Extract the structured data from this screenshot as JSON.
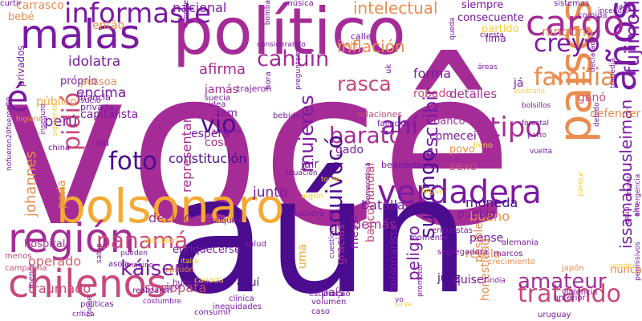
{
  "palette": {
    "deep_purple": "#4b0c8f",
    "purple": "#7a1aa3",
    "magenta": "#a52c97",
    "rose": "#c9487a",
    "pink": "#d8636a",
    "orange": "#ea8c4e",
    "amber": "#f5a935",
    "yellow": "#f7cd3a"
  },
  "words": [
    {
      "text": "você",
      "color": "#a52c97"
    },
    {
      "text": "aún",
      "color": "#4b0c8f"
    },
    {
      "text": "político",
      "color": "#a52c97"
    },
    {
      "text": "bolsonaro",
      "color": "#f5a935"
    },
    {
      "text": "región",
      "color": "#a52c97"
    },
    {
      "text": "chilenos",
      "color": "#c9487a"
    },
    {
      "text": "malas",
      "color": "#7a1aa3"
    },
    {
      "text": "países",
      "color": "#ea8c4e"
    },
    {
      "text": "verdadera",
      "color": "#7a1aa3"
    },
    {
      "text": "años",
      "color": "#7a1aa3"
    },
    {
      "text": "cargo",
      "color": "#a52c97"
    },
    {
      "text": "é",
      "color": "#7a1aa3"
    },
    {
      "text": "informaste",
      "color": "#7a1aa3"
    },
    {
      "text": "creyó",
      "color": "#7a1aa3"
    },
    {
      "text": "familia",
      "color": "#ea8c4e"
    },
    {
      "text": "fujimori",
      "color": "#7a1aa3"
    },
    {
      "text": "tipo",
      "color": "#a52c97"
    },
    {
      "text": "vio",
      "color": "#4b0c8f"
    },
    {
      "text": "ahí",
      "color": "#7a1aa3"
    },
    {
      "text": "foto",
      "color": "#4b0c8f"
    },
    {
      "text": "supongo",
      "color": "#4b0c8f"
    },
    {
      "text": "escribir",
      "color": "#7a1aa3"
    },
    {
      "text": "barato",
      "color": "#a52c97"
    },
    {
      "text": "rasca",
      "color": "#c9487a"
    },
    {
      "text": "cahuin",
      "color": "#a52c97"
    },
    {
      "text": "panamá",
      "color": "#c9487a"
    },
    {
      "text": "káiser",
      "color": "#7a1aa3"
    },
    {
      "text": "tratando",
      "color": "#c9487a"
    },
    {
      "text": "amateur",
      "color": "#a52c97"
    },
    {
      "text": "equivocó",
      "color": "#4b0c8f"
    },
    {
      "text": "pidió",
      "color": "#c9487a"
    },
    {
      "text": "mujeres",
      "color": "#7a1aa3"
    },
    {
      "text": "peligro",
      "color": "#7a1aa3"
    },
    {
      "text": "issamabousleiman",
      "color": "#7a1aa3"
    },
    {
      "text": "inflación",
      "color": "#ea8c4e"
    },
    {
      "text": "intelectual",
      "color": "#ea8c4e"
    },
    {
      "text": "nacional",
      "color": "#7a1aa3"
    },
    {
      "text": "ninguna",
      "color": "#ea8c4e"
    },
    {
      "text": "forma",
      "color": "#7a1aa3"
    },
    {
      "text": "robado",
      "color": "#c9487a"
    },
    {
      "text": "afirma",
      "color": "#a52c97"
    },
    {
      "text": "encima",
      "color": "#7a1aa3"
    },
    {
      "text": "idolatra",
      "color": "#7a1aa3"
    },
    {
      "text": "johannes",
      "color": "#ea8c4e"
    },
    {
      "text": "perú",
      "color": "#7a1aa3"
    },
    {
      "text": "constitución",
      "color": "#4b0c8f"
    },
    {
      "text": "batalla",
      "color": "#7a1aa3"
    },
    {
      "text": "moneda",
      "color": "#4b0c8f"
    },
    {
      "text": "bueno",
      "color": "#ea8c4e"
    },
    {
      "text": "demás",
      "color": "#a52c97"
    },
    {
      "text": "decirlo",
      "color": "#a52c97"
    },
    {
      "text": "junto",
      "color": "#7a1aa3"
    },
    {
      "text": "sociopata",
      "color": "#c9487a"
    },
    {
      "text": "traumado",
      "color": "#c9487a"
    },
    {
      "text": "operado",
      "color": "#d8636a"
    },
    {
      "text": "honestidad",
      "color": "#ea8c4e"
    },
    {
      "text": "bolsonarista",
      "color": "#7a1aa3"
    },
    {
      "text": "bancomundial",
      "color": "#c9487a"
    },
    {
      "text": "messi",
      "color": "#7a1aa3"
    },
    {
      "text": "gracias",
      "color": "#a52c97"
    },
    {
      "text": "posible",
      "color": "#ea8c4e"
    },
    {
      "text": "detalles",
      "color": "#a52c97"
    },
    {
      "text": "representante",
      "color": "#a52c97"
    },
    {
      "text": "costa",
      "color": "#a52c97"
    },
    {
      "text": "espera",
      "color": "#7a1aa3"
    },
    {
      "text": "jair",
      "color": "#7a1aa3"
    },
    {
      "text": "gado",
      "color": "#7a1aa3"
    },
    {
      "text": "jamás",
      "color": "#a52c97"
    },
    {
      "text": "tem",
      "color": "#7a1aa3"
    },
    {
      "text": "banco",
      "color": "#a52c97"
    },
    {
      "text": "comecei",
      "color": "#7a1aa3"
    },
    {
      "text": "povo",
      "color": "#ea8c4e"
    },
    {
      "text": "sexo",
      "color": "#c9487a"
    },
    {
      "text": "ganó",
      "color": "#c9487a"
    },
    {
      "text": "já",
      "color": "#7a1aa3"
    },
    {
      "text": "defender",
      "color": "#ea8c4e"
    },
    {
      "text": "pueblo",
      "color": "#7a1aa3"
    },
    {
      "text": "pense",
      "color": "#7a1aa3"
    },
    {
      "text": "revela",
      "color": "#ea8c4e"
    },
    {
      "text": "juez",
      "color": "#4b0c8f"
    },
    {
      "text": "quiser",
      "color": "#7a1aa3"
    },
    {
      "text": "nunca",
      "color": "#ea8c4e"
    },
    {
      "text": "parla",
      "color": "#ea8c4e"
    },
    {
      "text": "enriquecerse",
      "color": "#7a1aa3"
    },
    {
      "text": "hospital",
      "color": "#a52c97"
    },
    {
      "text": "então",
      "color": "#ea8c4e"
    },
    {
      "text": "carrasco",
      "color": "#ea8c4e"
    },
    {
      "text": "bebé",
      "color": "#ea8c4e"
    },
    {
      "text": "capitalista",
      "color": "#7a1aa3"
    },
    {
      "text": "privados",
      "color": "#7a1aa3"
    },
    {
      "text": "próprio",
      "color": "#7a1aa3"
    },
    {
      "text": "pessoa",
      "color": "#ea8c4e"
    },
    {
      "text": "público",
      "color": "#f5a935"
    },
    {
      "text": "eu",
      "color": "#7a1aa3"
    },
    {
      "text": "país",
      "color": "#7a1aa3"
    },
    {
      "text": "aquí",
      "color": "#4b0c8f"
    },
    {
      "text": "uma",
      "color": "#f5a935"
    },
    {
      "text": "siempre",
      "color": "#7a1aa3"
    },
    {
      "text": "consecuente",
      "color": "#7a1aa3"
    },
    {
      "text": "partido",
      "color": "#f7cd3a"
    },
    {
      "text": "lima",
      "color": "#7a1aa3"
    },
    {
      "text": "viaje",
      "color": "#ea8c4e"
    },
    {
      "text": "calle",
      "color": "#7a1aa3"
    },
    {
      "text": "música",
      "color": "#7a1aa3"
    },
    {
      "text": "bomba",
      "color": "#7a1aa3"
    },
    {
      "text": "uk",
      "color": "#7a1aa3"
    },
    {
      "text": "relaciones",
      "color": "#c9487a"
    },
    {
      "text": "beneficio",
      "color": "#7a1aa3"
    },
    {
      "text": "fallecido",
      "color": "#7a1aa3"
    },
    {
      "text": "trajeron",
      "color": "#7a1aa3"
    },
    {
      "text": "francia",
      "color": "#7a1aa3"
    },
    {
      "text": "privada",
      "color": "#7a1aa3"
    },
    {
      "text": "sucio",
      "color": "#7a1aa3"
    },
    {
      "text": "suecia",
      "color": "#7a1aa3"
    },
    {
      "text": "idea",
      "color": "#7a1aa3"
    },
    {
      "text": "china",
      "color": "#7a1aa3"
    },
    {
      "text": "venezuela",
      "color": "#7a1aa3"
    },
    {
      "text": "cualquier",
      "color": "#7a1aa3"
    },
    {
      "text": "encuestas",
      "color": "#7a1aa3"
    },
    {
      "text": "momento",
      "color": "#7a1aa3"
    },
    {
      "text": "segregadora",
      "color": "#7a1aa3"
    },
    {
      "text": "marcos",
      "color": "#7a1aa3"
    },
    {
      "text": "alemania",
      "color": "#7a1aa3"
    },
    {
      "text": "crecimiento",
      "color": "#ea8c4e"
    },
    {
      "text": "india",
      "color": "#7a1aa3"
    },
    {
      "text": "uruguay",
      "color": "#7a1aa3"
    },
    {
      "text": "anterior",
      "color": "#7a1aa3"
    },
    {
      "text": "violencia",
      "color": "#7a1aa3"
    },
    {
      "text": "japón",
      "color": "#ea8c4e"
    },
    {
      "text": "vender",
      "color": "#f7cd3a"
    },
    {
      "text": "inequidades",
      "color": "#7a1aa3"
    },
    {
      "text": "clínica",
      "color": "#7a1aa3"
    },
    {
      "text": "imagino",
      "color": "#7a1aa3"
    },
    {
      "text": "realizaron",
      "color": "#7a1aa3"
    },
    {
      "text": "humildes",
      "color": "#7a1aa3"
    },
    {
      "text": "pueden",
      "color": "#7a1aa3"
    },
    {
      "text": "consumir",
      "color": "#7a1aa3"
    },
    {
      "text": "políticas",
      "color": "#7a1aa3"
    },
    {
      "text": "toque",
      "color": "#7a1aa3"
    },
    {
      "text": "menor",
      "color": "#7a1aa3"
    },
    {
      "text": "menos",
      "color": "#c9487a"
    },
    {
      "text": "campanha",
      "color": "#c9487a"
    },
    {
      "text": "asola",
      "color": "#7a1aa3"
    },
    {
      "text": "decision",
      "color": "#f7cd3a"
    },
    {
      "text": "canadá",
      "color": "#f7cd3a"
    },
    {
      "text": "opinión",
      "color": "#ea8c4e"
    },
    {
      "text": "salud",
      "color": "#7a1aa3"
    },
    {
      "text": "estimação",
      "color": "#7a1aa3"
    },
    {
      "text": "sistemas",
      "color": "#7a1aa3"
    },
    {
      "text": "incendio",
      "color": "#7a1aa3"
    },
    {
      "text": "hace",
      "color": "#7a1aa3"
    },
    {
      "text": "comida",
      "color": "#7a1aa3"
    },
    {
      "text": "cuesta",
      "color": "#7a1aa3"
    },
    {
      "text": "áreas",
      "color": "#7a1aa3"
    },
    {
      "text": "queda",
      "color": "#7a1aa3"
    },
    {
      "text": "bebidas",
      "color": "#7a1aa3"
    },
    {
      "text": "considerando",
      "color": "#7a1aa3"
    },
    {
      "text": "informe",
      "color": "#7a1aa3"
    },
    {
      "text": "hora",
      "color": "#7a1aa3"
    },
    {
      "text": "australia",
      "color": "#f7cd3a"
    },
    {
      "text": "bolsillos",
      "color": "#7a1aa3"
    },
    {
      "text": "forestal",
      "color": "#7a1aa3"
    },
    {
      "text": "parto",
      "color": "#7a1aa3"
    },
    {
      "text": "vuelta",
      "color": "#7a1aa3"
    },
    {
      "text": "tragedia",
      "color": "#7a1aa3"
    },
    {
      "text": "debido",
      "color": "#7a1aa3"
    },
    {
      "text": "declarado",
      "color": "#7a1aa3"
    },
    {
      "text": "preguntamos",
      "color": "#7a1aa3"
    },
    {
      "text": "asevera",
      "color": "#7a1aa3"
    },
    {
      "text": "lleno",
      "color": "#f7cd3a"
    },
    {
      "text": "italia",
      "color": "#f7cd3a"
    },
    {
      "text": "volumen",
      "color": "#7a1aa3"
    },
    {
      "text": "caso",
      "color": "#7a1aa3"
    },
    {
      "text": "algún",
      "color": "#f7cd3a"
    },
    {
      "text": "tome",
      "color": "#f7cd3a"
    },
    {
      "text": "llegue",
      "color": "#f7cd3a"
    },
    {
      "text": "eeuu",
      "color": "#7a1aa3"
    },
    {
      "text": "mujer",
      "color": "#7a1aa3"
    },
    {
      "text": "alto",
      "color": "#7a1aa3"
    },
    {
      "text": "parece",
      "color": "#f7cd3a"
    },
    {
      "text": "permisivos",
      "color": "#7a1aa3"
    },
    {
      "text": "emergencia",
      "color": "#7a1aa3"
    },
    {
      "text": "nofueron20fueron70",
      "color": "#7a1aa3"
    },
    {
      "text": "siguiente",
      "color": "#f7cd3a"
    },
    {
      "text": "inseguro",
      "color": "#7a1aa3"
    },
    {
      "text": "higiene",
      "color": "#ea8c4e"
    },
    {
      "text": "situación",
      "color": "#7a1aa3"
    },
    {
      "text": "democracia",
      "color": "#7a1aa3"
    },
    {
      "text": "promotor",
      "color": "#7a1aa3"
    },
    {
      "text": "cuestionarlo",
      "color": "#7a1aa3"
    },
    {
      "text": "crítica",
      "color": "#7a1aa3"
    },
    {
      "text": "satán",
      "color": "#7a1aa3"
    },
    {
      "text": "error",
      "color": "#7a1aa3"
    },
    {
      "text": "juntarse",
      "color": "#7a1aa3"
    },
    {
      "text": "costumbre",
      "color": "#7a1aa3"
    },
    {
      "text": "yo",
      "color": "#7a1aa3"
    },
    {
      "text": "sirve",
      "color": "#f7cd3a"
    },
    {
      "text": "curtir",
      "color": "#7a1aa3"
    }
  ]
}
